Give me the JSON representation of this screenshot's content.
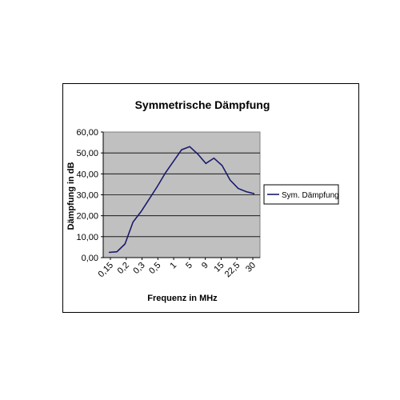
{
  "chart_data": {
    "type": "line",
    "title": "Symmetrische Dämpfung",
    "xlabel": "Frequenz in MHz",
    "ylabel": "Dämpfung in dB",
    "categories": [
      "0,15",
      "0,2",
      "0,3",
      "0,5",
      "1",
      "5",
      "9",
      "15",
      "22,5",
      "30"
    ],
    "x": [
      0.15,
      0.175,
      0.2,
      0.25,
      0.3,
      0.4,
      0.5,
      0.75,
      1,
      3,
      5,
      7,
      9,
      12,
      15,
      18,
      22.5,
      26,
      30
    ],
    "y_tick_labels": [
      "0,00",
      "10,00",
      "20,00",
      "30,00",
      "40,00",
      "50,00",
      "60,00"
    ],
    "ylim": [
      0,
      60
    ],
    "grid": true,
    "legend_position": "right",
    "series": [
      {
        "name": "Sym. Dämpfung",
        "color": "#1a1a6e",
        "values": [
          2.5,
          2.8,
          6.5,
          17,
          22,
          28,
          34,
          40.5,
          46,
          51.5,
          53,
          49.5,
          45,
          47.5,
          44,
          37,
          33,
          31.5,
          30.5
        ]
      }
    ]
  }
}
